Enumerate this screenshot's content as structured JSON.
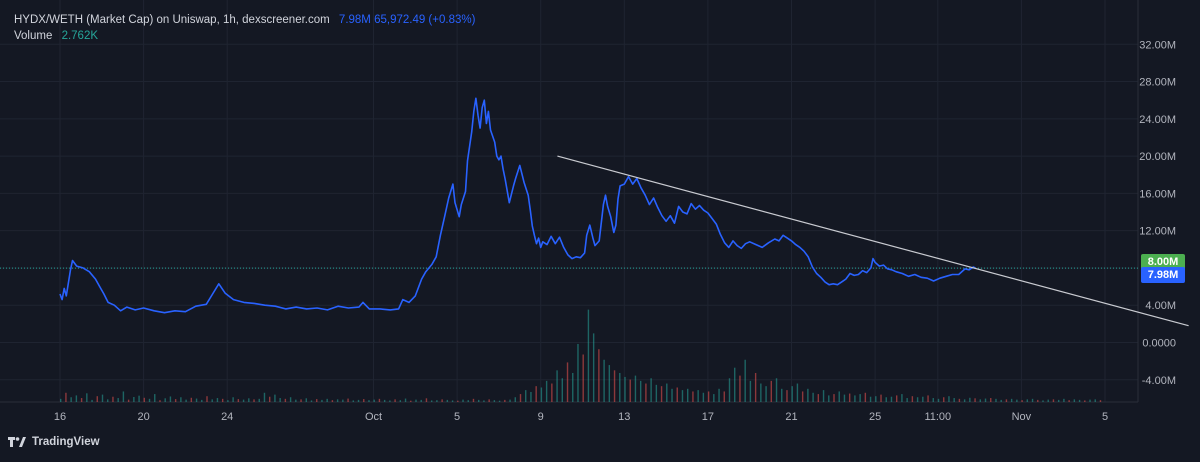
{
  "legend": {
    "title": "HYDX/WETH (Market Cap) on Uniswap, 1h, dexscreener.com",
    "price_line": "7.98M  65,972.49 (+0.83%)",
    "volume_label": "Volume",
    "volume_value": "2.762K"
  },
  "price_tags": {
    "upper": {
      "text": "8.00M",
      "color": "#4caf50"
    },
    "current": {
      "text": "7.98M",
      "color": "#2962ff"
    }
  },
  "branding": {
    "logo_text": "TradingView",
    "logo_icon": "tradingview-logo-icon"
  },
  "colors": {
    "background": "#141823",
    "line": "#2962ff",
    "trendline": "#c9cbd1",
    "price_line": "#26a69a",
    "volume_up": "#26a69a",
    "volume_down": "#ef5350"
  },
  "chart_data": {
    "type": "line",
    "y_unit": "M",
    "ylim": [
      -6,
      34
    ],
    "y_ticks": [
      "32.00M",
      "28.00M",
      "24.00M",
      "20.00M",
      "16.00M",
      "12.00M",
      "8.00M",
      "4.00M",
      "0.0000",
      "-4.00M"
    ],
    "x_ticks": [
      "16",
      "20",
      "24",
      "Oct",
      "5",
      "9",
      "13",
      "17",
      "21",
      "25",
      "11:00",
      "Nov",
      "5"
    ],
    "grid": true,
    "legend": "top-left",
    "current_value": 7.98,
    "series": [
      {
        "values": [
          [
            16.0,
            5.2
          ],
          [
            16.1,
            4.6
          ],
          [
            16.2,
            5.8
          ],
          [
            16.3,
            5.0
          ],
          [
            16.5,
            7.8
          ],
          [
            16.6,
            8.8
          ],
          [
            16.8,
            8.2
          ],
          [
            17.1,
            8.0
          ],
          [
            17.4,
            7.6
          ],
          [
            17.7,
            6.8
          ],
          [
            17.9,
            6.0
          ],
          [
            18.1,
            5.2
          ],
          [
            18.3,
            4.3
          ],
          [
            18.6,
            4.0
          ],
          [
            18.9,
            3.4
          ],
          [
            19.2,
            3.8
          ],
          [
            19.6,
            3.5
          ],
          [
            20.0,
            3.7
          ],
          [
            20.5,
            3.4
          ],
          [
            21.0,
            3.2
          ],
          [
            21.5,
            3.4
          ],
          [
            22.0,
            3.3
          ],
          [
            22.5,
            3.9
          ],
          [
            23.0,
            4.1
          ],
          [
            23.3,
            5.2
          ],
          [
            23.6,
            6.3
          ],
          [
            23.9,
            5.3
          ],
          [
            24.3,
            4.6
          ],
          [
            24.8,
            4.3
          ],
          [
            25.3,
            4.2
          ],
          [
            25.8,
            4.0
          ],
          [
            26.3,
            3.9
          ],
          [
            26.8,
            3.6
          ],
          [
            27.3,
            3.8
          ],
          [
            27.8,
            3.6
          ],
          [
            28.3,
            3.7
          ],
          [
            28.8,
            3.5
          ],
          [
            29.3,
            3.9
          ],
          [
            29.8,
            3.7
          ],
          [
            30.3,
            3.8
          ],
          [
            30.5,
            4.3
          ],
          [
            30.8,
            3.6
          ],
          [
            31.3,
            3.6
          ],
          [
            31.8,
            3.5
          ],
          [
            32.2,
            3.6
          ],
          [
            32.4,
            4.6
          ],
          [
            32.7,
            4.3
          ],
          [
            33.0,
            5.0
          ],
          [
            33.3,
            6.8
          ],
          [
            33.5,
            7.6
          ],
          [
            33.8,
            8.4
          ],
          [
            34.0,
            9.2
          ],
          [
            34.2,
            11.5
          ],
          [
            34.4,
            13.5
          ],
          [
            34.6,
            15.5
          ],
          [
            34.8,
            17.0
          ],
          [
            34.9,
            15.0
          ],
          [
            35.1,
            13.5
          ],
          [
            35.2,
            14.8
          ],
          [
            35.4,
            16.2
          ],
          [
            35.5,
            19.5
          ],
          [
            35.7,
            22.6
          ],
          [
            35.8,
            24.8
          ],
          [
            35.9,
            26.2
          ],
          [
            36.0,
            24.4
          ],
          [
            36.1,
            23.0
          ],
          [
            36.2,
            25.2
          ],
          [
            36.3,
            26.0
          ],
          [
            36.4,
            23.5
          ],
          [
            36.5,
            24.8
          ],
          [
            36.6,
            22.8
          ],
          [
            36.8,
            21.5
          ],
          [
            36.9,
            20.0
          ],
          [
            37.0,
            19.6
          ],
          [
            37.1,
            20.0
          ],
          [
            37.2,
            18.6
          ],
          [
            37.3,
            17.5
          ],
          [
            37.5,
            15.0
          ],
          [
            37.7,
            16.8
          ],
          [
            37.8,
            17.6
          ],
          [
            38.0,
            19.0
          ],
          [
            38.2,
            17.2
          ],
          [
            38.4,
            15.8
          ],
          [
            38.5,
            14.2
          ],
          [
            38.6,
            12.5
          ],
          [
            38.7,
            11.5
          ],
          [
            38.8,
            10.6
          ],
          [
            38.9,
            11.2
          ],
          [
            39.0,
            10.2
          ],
          [
            39.1,
            10.8
          ],
          [
            39.3,
            10.5
          ],
          [
            39.5,
            11.4
          ],
          [
            39.7,
            10.6
          ],
          [
            39.9,
            11.3
          ],
          [
            40.1,
            10.2
          ],
          [
            40.3,
            9.4
          ],
          [
            40.5,
            9.0
          ],
          [
            40.7,
            9.2
          ],
          [
            40.9,
            9.1
          ],
          [
            41.1,
            9.6
          ],
          [
            41.2,
            11.5
          ],
          [
            41.35,
            12.6
          ],
          [
            41.5,
            11.2
          ],
          [
            41.6,
            10.4
          ],
          [
            41.8,
            10.9
          ],
          [
            42.0,
            14.8
          ],
          [
            42.1,
            15.8
          ],
          [
            42.2,
            14.6
          ],
          [
            42.35,
            13.5
          ],
          [
            42.5,
            11.8
          ],
          [
            42.6,
            12.6
          ],
          [
            42.7,
            15.4
          ],
          [
            42.8,
            16.8
          ],
          [
            43.0,
            17.0
          ],
          [
            43.2,
            17.8
          ],
          [
            43.4,
            17.0
          ],
          [
            43.6,
            17.6
          ],
          [
            43.8,
            16.6
          ],
          [
            44.0,
            15.8
          ],
          [
            44.2,
            14.8
          ],
          [
            44.4,
            15.5
          ],
          [
            44.6,
            14.5
          ],
          [
            44.8,
            13.6
          ],
          [
            45.0,
            13.0
          ],
          [
            45.2,
            13.6
          ],
          [
            45.4,
            12.8
          ],
          [
            45.6,
            14.6
          ],
          [
            45.8,
            14.0
          ],
          [
            46.0,
            13.8
          ],
          [
            46.2,
            14.9
          ],
          [
            46.4,
            14.3
          ],
          [
            46.6,
            14.7
          ],
          [
            46.8,
            14.2
          ],
          [
            47.0,
            13.9
          ],
          [
            47.2,
            13.3
          ],
          [
            47.4,
            12.7
          ],
          [
            47.6,
            11.6
          ],
          [
            47.8,
            10.7
          ],
          [
            48.0,
            10.2
          ],
          [
            48.2,
            10.9
          ],
          [
            48.4,
            10.4
          ],
          [
            48.6,
            10.1
          ],
          [
            48.8,
            10.6
          ],
          [
            49.0,
            10.8
          ],
          [
            49.3,
            10.5
          ],
          [
            49.6,
            10.2
          ],
          [
            49.9,
            10.7
          ],
          [
            50.2,
            11.1
          ],
          [
            50.4,
            10.9
          ],
          [
            50.6,
            11.5
          ],
          [
            50.8,
            11.2
          ],
          [
            51.0,
            10.9
          ],
          [
            51.2,
            10.5
          ],
          [
            51.4,
            10.2
          ],
          [
            51.6,
            9.8
          ],
          [
            51.8,
            9.2
          ],
          [
            52.0,
            8.1
          ],
          [
            52.2,
            7.4
          ],
          [
            52.4,
            7.0
          ],
          [
            52.6,
            6.5
          ],
          [
            52.8,
            6.2
          ],
          [
            53.0,
            6.3
          ],
          [
            53.2,
            6.2
          ],
          [
            53.4,
            6.5
          ],
          [
            53.6,
            6.8
          ],
          [
            53.8,
            7.4
          ],
          [
            54.0,
            7.2
          ],
          [
            54.2,
            7.3
          ],
          [
            54.4,
            7.7
          ],
          [
            54.6,
            7.5
          ],
          [
            54.8,
            8.0
          ],
          [
            54.9,
            9.0
          ],
          [
            55.0,
            8.6
          ],
          [
            55.2,
            8.2
          ],
          [
            55.4,
            8.3
          ],
          [
            55.6,
            7.9
          ],
          [
            55.8,
            7.8
          ],
          [
            56.0,
            7.6
          ],
          [
            56.3,
            7.4
          ],
          [
            56.6,
            7.1
          ],
          [
            56.9,
            7.3
          ],
          [
            57.2,
            7.0
          ],
          [
            57.5,
            6.9
          ],
          [
            57.8,
            6.6
          ],
          [
            58.1,
            6.9
          ],
          [
            58.4,
            7.1
          ],
          [
            58.7,
            7.3
          ],
          [
            59.0,
            7.3
          ],
          [
            59.3,
            7.9
          ],
          [
            59.5,
            7.8
          ],
          [
            59.7,
            8.1
          ],
          [
            59.8,
            7.98
          ]
        ]
      }
    ],
    "trendline": {
      "from": [
        39.8,
        20.0
      ],
      "to": [
        70.0,
        1.8
      ]
    },
    "volume": {
      "max_value": 3.6,
      "ylim": [
        0,
        3.6
      ],
      "first_x": 16,
      "step": 0.25,
      "values": [
        0.12,
        0.35,
        0.18,
        0.25,
        0.15,
        0.33,
        0.08,
        0.22,
        0.28,
        0.1,
        0.2,
        0.15,
        0.4,
        0.09,
        0.19,
        0.24,
        0.16,
        0.12,
        0.3,
        0.07,
        0.14,
        0.21,
        0.11,
        0.18,
        0.09,
        0.16,
        0.13,
        0.08,
        0.22,
        0.1,
        0.15,
        0.12,
        0.07,
        0.18,
        0.11,
        0.09,
        0.14,
        0.1,
        0.12,
        0.35,
        0.2,
        0.28,
        0.15,
        0.12,
        0.18,
        0.09,
        0.1,
        0.14,
        0.06,
        0.11,
        0.08,
        0.12,
        0.07,
        0.1,
        0.09,
        0.13,
        0.06,
        0.08,
        0.11,
        0.07,
        0.09,
        0.12,
        0.08,
        0.06,
        0.1,
        0.07,
        0.13,
        0.05,
        0.09,
        0.08,
        0.14,
        0.06,
        0.07,
        0.1,
        0.08,
        0.06,
        0.05,
        0.09,
        0.07,
        0.12,
        0.08,
        0.06,
        0.1,
        0.07,
        0.05,
        0.08,
        0.09,
        0.18,
        0.3,
        0.45,
        0.38,
        0.6,
        0.55,
        0.8,
        0.7,
        1.2,
        0.9,
        1.5,
        1.1,
        2.2,
        1.8,
        3.5,
        2.6,
        2.0,
        1.6,
        1.4,
        1.2,
        1.1,
        0.95,
        0.85,
        1.0,
        0.8,
        0.7,
        0.9,
        0.65,
        0.6,
        0.7,
        0.5,
        0.55,
        0.45,
        0.5,
        0.4,
        0.45,
        0.35,
        0.4,
        0.3,
        0.5,
        0.4,
        0.9,
        1.3,
        1.0,
        1.6,
        0.8,
        1.1,
        0.7,
        0.6,
        0.8,
        0.9,
        0.5,
        0.45,
        0.6,
        0.7,
        0.4,
        0.5,
        0.35,
        0.3,
        0.45,
        0.25,
        0.3,
        0.4,
        0.28,
        0.32,
        0.25,
        0.3,
        0.35,
        0.2,
        0.22,
        0.28,
        0.18,
        0.2,
        0.25,
        0.3,
        0.15,
        0.22,
        0.18,
        0.2,
        0.25,
        0.15,
        0.12,
        0.18,
        0.22,
        0.15,
        0.12,
        0.1,
        0.16,
        0.14,
        0.1,
        0.13,
        0.15,
        0.12,
        0.08,
        0.1,
        0.12,
        0.09,
        0.07,
        0.1,
        0.12,
        0.08,
        0.06,
        0.09,
        0.1,
        0.08,
        0.12,
        0.07,
        0.1,
        0.08,
        0.06,
        0.09,
        0.1,
        0.07
      ]
    }
  }
}
